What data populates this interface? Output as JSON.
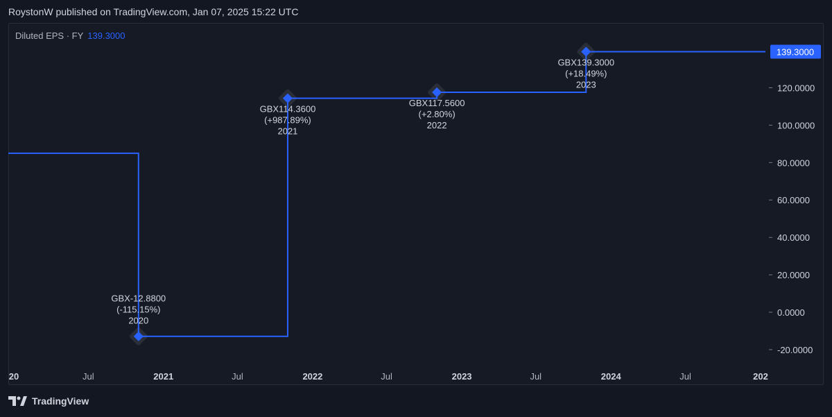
{
  "header": {
    "published": "RoystonW published on TradingView.com, Jan 07, 2025 15:22 UTC"
  },
  "legend": {
    "name": "Diluted EPS · FY",
    "value": "139.3000"
  },
  "colors": {
    "line": "#2962ff",
    "background": "#131722",
    "text": "#d1d4dc",
    "marker_halo": "#2a2e39"
  },
  "footer": {
    "brand": "TradingView",
    "logo_icon": "tradingview-logo-icon"
  },
  "chart_data": {
    "type": "line",
    "step": true,
    "series": [
      {
        "name": "Diluted EPS · FY",
        "points": [
          {
            "x": "2019-11-01",
            "y": 85.0
          },
          {
            "x": "2020-11-01",
            "y": -12.88
          },
          {
            "x": "2021-11-01",
            "y": 114.36
          },
          {
            "x": "2022-11-01",
            "y": 117.56
          },
          {
            "x": "2023-11-01",
            "y": 139.3
          }
        ]
      }
    ],
    "annotations": [
      {
        "x": "2020-11-01",
        "y": -12.88,
        "lines": [
          "GBX-12.8800",
          "(-115.15%)",
          "2020"
        ],
        "position": "above"
      },
      {
        "x": "2021-11-01",
        "y": 114.36,
        "lines": [
          "GBX114.3600",
          "(+987.89%)",
          "2021"
        ],
        "position": "below"
      },
      {
        "x": "2022-11-01",
        "y": 117.56,
        "lines": [
          "GBX117.5600",
          "(+2.80%)",
          "2022"
        ],
        "position": "below"
      },
      {
        "x": "2023-11-01",
        "y": 139.3,
        "lines": [
          "GBX139.3000",
          "(+18.49%)",
          "2023"
        ],
        "position": "below"
      }
    ],
    "y_ticks": [
      "139.3000",
      "120.0000",
      "100.0000",
      "80.0000",
      "60.0000",
      "40.0000",
      "20.0000",
      "0.0000",
      "-20.0000"
    ],
    "last_value_label": "139.3000",
    "x_ticks": [
      {
        "x": "2020-01-01",
        "label": "20"
      },
      {
        "x": "2020-07-01",
        "label": "Jul"
      },
      {
        "x": "2021-01-01",
        "label": "2021"
      },
      {
        "x": "2021-07-01",
        "label": "Jul"
      },
      {
        "x": "2022-01-01",
        "label": "2022"
      },
      {
        "x": "2022-07-01",
        "label": "Jul"
      },
      {
        "x": "2023-01-01",
        "label": "2023"
      },
      {
        "x": "2023-07-01",
        "label": "Jul"
      },
      {
        "x": "2024-01-01",
        "label": "2024"
      },
      {
        "x": "2024-07-01",
        "label": "Jul"
      },
      {
        "x": "2025-01-01",
        "label": "202"
      }
    ],
    "y_axis_position": "right",
    "grid": false
  }
}
